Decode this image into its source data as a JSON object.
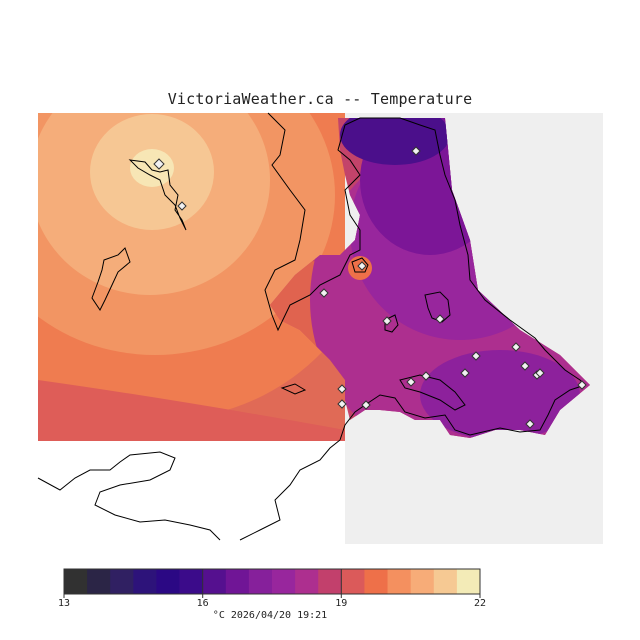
{
  "header": {
    "title": "VictoriaWeather.ca -- Temperature"
  },
  "colors": {
    "land_background": "#efefef",
    "coast_line": "#000000",
    "accent": "#f08a5a",
    "peak": "#fbeab1"
  },
  "map": {
    "region": "Victoria region, BC",
    "variable": "Temperature",
    "station_marker": "diamond-icon"
  },
  "legend": {
    "min": 13,
    "max": 22,
    "step": 0.5,
    "ticks": [
      "13",
      "16",
      "19",
      "22"
    ],
    "colors": [
      "#313131",
      "#2b2546",
      "#302062",
      "#2d137a",
      "#2b0884",
      "#3b0b8a",
      "#55108f",
      "#701596",
      "#86209b",
      "#98269d",
      "#ad2f8f",
      "#c2406c",
      "#db5a5a",
      "#ee7049",
      "#f4905f",
      "#f7ac78",
      "#f6c993",
      "#f3ebb7"
    ],
    "units_timestamp": "°C  2026/04/20 19:21"
  }
}
